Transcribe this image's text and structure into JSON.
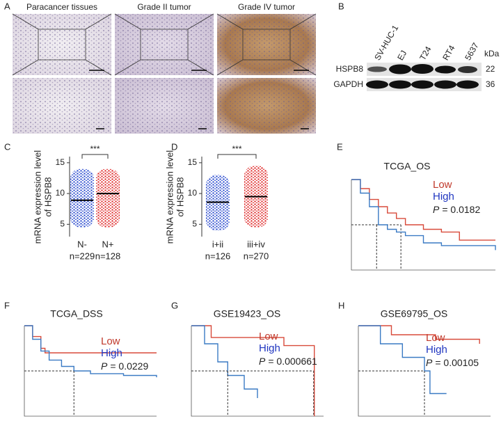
{
  "panel_labels": [
    "A",
    "B",
    "C",
    "D",
    "E",
    "F",
    "G",
    "H"
  ],
  "histology": {
    "columns": [
      "Paracancer tissues",
      "Grade II tumor",
      "Grade IV tumor"
    ]
  },
  "western_blot": {
    "lanes": [
      "SV-HUC-1",
      "EJ",
      "T24",
      "RT4",
      "5637"
    ],
    "unit": "kDa",
    "rows": [
      {
        "name": "HSPB8",
        "size": 22
      },
      {
        "name": "GAPDH",
        "size": 36
      }
    ]
  },
  "dot_plots": [
    {
      "y_label_lines": [
        "mRNA expression level",
        "of HSPB8"
      ],
      "ylim": [
        3,
        16
      ],
      "yticks": [
        5,
        10,
        15
      ],
      "significance": "***",
      "groups": [
        {
          "name": "N-",
          "n_label": "n=229",
          "color": "#2f4fd0",
          "mean": 8.9,
          "range": [
            4.5,
            14
          ]
        },
        {
          "name": "N+",
          "n_label": "n=128",
          "color": "#e03030",
          "mean": 10,
          "range": [
            4.5,
            14
          ]
        }
      ]
    },
    {
      "y_label_lines": [
        "mRNA expression level",
        "of HSPB8"
      ],
      "ylim": [
        3,
        16
      ],
      "yticks": [
        5,
        10,
        15
      ],
      "significance": "***",
      "groups": [
        {
          "name": "i+ii",
          "n_label": "n=126",
          "color": "#2f4fd0",
          "mean": 8.6,
          "range": [
            4,
            13
          ]
        },
        {
          "name": "iii+iv",
          "n_label": "n=270",
          "color": "#e03030",
          "mean": 9.5,
          "range": [
            4.5,
            14.5
          ]
        }
      ]
    }
  ],
  "km_plots": [
    {
      "title": "TCGA_OS",
      "p_label": "P",
      "p_value": "= 0.0182",
      "xlim": [
        0,
        160
      ],
      "ylim": [
        0,
        1
      ],
      "median_level": 0.5,
      "series": [
        {
          "name": "Low",
          "color": "#d84a3a",
          "median": 55,
          "x": [
            0,
            10,
            20,
            30,
            40,
            50,
            60,
            80,
            100,
            120,
            160
          ],
          "y": [
            1,
            0.9,
            0.78,
            0.7,
            0.63,
            0.57,
            0.5,
            0.45,
            0.42,
            0.33,
            0.33
          ]
        },
        {
          "name": "High",
          "color": "#3a7ac4",
          "median": 28,
          "x": [
            0,
            10,
            20,
            30,
            40,
            50,
            60,
            80,
            100,
            120,
            160
          ],
          "y": [
            1,
            0.85,
            0.7,
            0.5,
            0.45,
            0.42,
            0.38,
            0.3,
            0.27,
            0.27,
            0.22
          ]
        }
      ]
    },
    {
      "title": "TCGA_DSS",
      "p_label": "P",
      "p_value": "= 0.0229",
      "xlim": [
        0,
        160
      ],
      "ylim": [
        0,
        1
      ],
      "median_level": 0.5,
      "series": [
        {
          "name": "Low",
          "color": "#d84a3a",
          "median": null,
          "x": [
            0,
            10,
            20,
            25,
            160
          ],
          "y": [
            1,
            0.88,
            0.75,
            0.7,
            0.7
          ]
        },
        {
          "name": "High",
          "color": "#3a7ac4",
          "median": 60,
          "x": [
            0,
            10,
            20,
            30,
            45,
            60,
            80,
            120,
            160
          ],
          "y": [
            1,
            0.85,
            0.72,
            0.62,
            0.55,
            0.5,
            0.47,
            0.45,
            0.43
          ]
        }
      ]
    },
    {
      "title": "GSE19423_OS",
      "p_label": "P",
      "p_value": "= 0.000661",
      "xlim": [
        0,
        200
      ],
      "ylim": [
        0,
        1
      ],
      "median_level": 0.5,
      "series": [
        {
          "name": "Low",
          "color": "#d84a3a",
          "median": 185,
          "x": [
            0,
            30,
            140,
            185,
            186
          ],
          "y": [
            1,
            0.87,
            0.78,
            0.78,
            0
          ]
        },
        {
          "name": "High",
          "color": "#3a7ac4",
          "median": 55,
          "x": [
            0,
            20,
            40,
            55,
            80,
            100
          ],
          "y": [
            1,
            0.8,
            0.6,
            0.45,
            0.3,
            0.2
          ]
        }
      ]
    },
    {
      "title": "GSE69795_OS",
      "p_label": "P",
      "p_value": "= 0.00105",
      "xlim": [
        0,
        120
      ],
      "ylim": [
        0,
        1
      ],
      "median_level": 0.5,
      "series": [
        {
          "name": "Low",
          "color": "#d84a3a",
          "median": null,
          "x": [
            0,
            30,
            70,
            110
          ],
          "y": [
            1,
            0.9,
            0.85,
            0.8
          ]
        },
        {
          "name": "High",
          "color": "#3a7ac4",
          "median": 60,
          "x": [
            0,
            20,
            40,
            60,
            65,
            80
          ],
          "y": [
            1,
            0.8,
            0.65,
            0.5,
            0.25,
            0.25
          ]
        }
      ]
    }
  ]
}
